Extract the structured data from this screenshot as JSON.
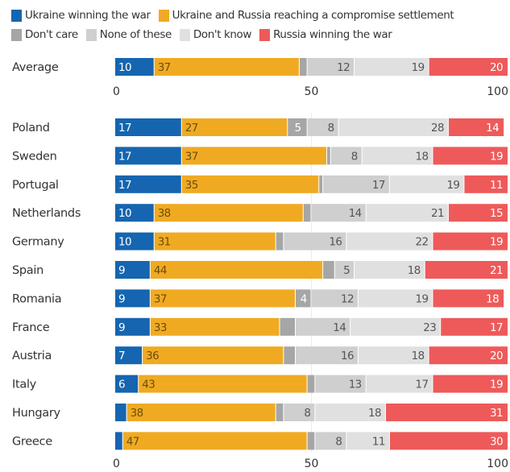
{
  "chart_data": {
    "type": "bar",
    "orientation": "horizontal",
    "stacked": true,
    "title": "",
    "xlabel": "",
    "ylabel": "",
    "xlim": [
      0,
      100
    ],
    "xticks": [
      0,
      50,
      100
    ],
    "grid": true,
    "legend_position": "top",
    "series": [
      {
        "name": "Ukraine winning the war",
        "color": "#1565b0",
        "label_color": "#ffffff"
      },
      {
        "name": "Ukraine and Russia reaching a compromise settlement",
        "color": "#f0aa22",
        "label_color": "#6b4e0e"
      },
      {
        "name": "Don't care",
        "color": "#a6a6a6",
        "label_color": "#ffffff"
      },
      {
        "name": "None of these",
        "color": "#cfcfcf",
        "label_color": "#555555"
      },
      {
        "name": "Don't know",
        "color": "#e0e0e0",
        "label_color": "#555555"
      },
      {
        "name": "Russia winning the war",
        "color": "#ee5a5a",
        "label_color": "#ffffff"
      }
    ],
    "summary_row": {
      "category": "Average",
      "values": [
        10,
        37,
        2,
        12,
        19,
        20
      ],
      "labels": [
        "10",
        "37",
        "",
        "12",
        "19",
        "20"
      ]
    },
    "categories": [
      "Poland",
      "Sweden",
      "Portugal",
      "Netherlands",
      "Germany",
      "Spain",
      "Romania",
      "France",
      "Austria",
      "Italy",
      "Hungary",
      "Greece"
    ],
    "rows": [
      {
        "category": "Poland",
        "values": [
          17,
          27,
          5,
          8,
          28,
          14
        ],
        "labels": [
          "17",
          "27",
          "5",
          "8",
          "28",
          "14"
        ]
      },
      {
        "category": "Sweden",
        "values": [
          17,
          37,
          1,
          8,
          18,
          19
        ],
        "labels": [
          "17",
          "37",
          "",
          "8",
          "18",
          "19"
        ]
      },
      {
        "category": "Portugal",
        "values": [
          17,
          35,
          1,
          17,
          19,
          11
        ],
        "labels": [
          "17",
          "35",
          "",
          "17",
          "19",
          "11"
        ]
      },
      {
        "category": "Netherlands",
        "values": [
          10,
          38,
          2,
          14,
          21,
          15
        ],
        "labels": [
          "10",
          "38",
          "",
          "14",
          "21",
          "15"
        ]
      },
      {
        "category": "Germany",
        "values": [
          10,
          31,
          2,
          16,
          22,
          19
        ],
        "labels": [
          "10",
          "31",
          "",
          "16",
          "22",
          "19"
        ]
      },
      {
        "category": "Spain",
        "values": [
          9,
          44,
          3,
          5,
          18,
          21
        ],
        "labels": [
          "9",
          "44",
          "",
          "5",
          "18",
          "21"
        ]
      },
      {
        "category": "Romania",
        "values": [
          9,
          37,
          4,
          12,
          19,
          18
        ],
        "labels": [
          "9",
          "37",
          "4",
          "12",
          "19",
          "18"
        ]
      },
      {
        "category": "France",
        "values": [
          9,
          33,
          4,
          14,
          23,
          17
        ],
        "labels": [
          "9",
          "33",
          "",
          "14",
          "23",
          "17"
        ]
      },
      {
        "category": "Austria",
        "values": [
          7,
          36,
          3,
          16,
          18,
          20
        ],
        "labels": [
          "7",
          "36",
          "",
          "16",
          "18",
          "20"
        ]
      },
      {
        "category": "Italy",
        "values": [
          6,
          43,
          2,
          13,
          17,
          19
        ],
        "labels": [
          "6",
          "43",
          "",
          "13",
          "17",
          "19"
        ]
      },
      {
        "category": "Hungary",
        "values": [
          3,
          38,
          2,
          8,
          18,
          31
        ],
        "labels": [
          "",
          "38",
          "",
          "8",
          "18",
          "31"
        ]
      },
      {
        "category": "Greece",
        "values": [
          2,
          47,
          2,
          8,
          11,
          30
        ],
        "labels": [
          "",
          "47",
          "",
          "8",
          "11",
          "30"
        ]
      }
    ]
  }
}
